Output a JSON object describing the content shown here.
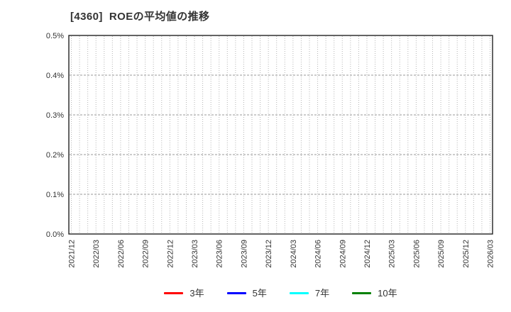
{
  "chart_data": {
    "type": "line",
    "title": "[4360]  ROEの平均値の推移",
    "xlabel": "",
    "ylabel": "",
    "y_unit": "%",
    "ylim": [
      0.0,
      0.5
    ],
    "y_tick_step": 0.1,
    "y_tick_labels": [
      "0.0%",
      "0.1%",
      "0.2%",
      "0.3%",
      "0.4%",
      "0.5%"
    ],
    "x_monthly_count": 52,
    "x_label_every_n_months": 3,
    "x_tick_labels": [
      "2021/12",
      "2022/03",
      "2022/06",
      "2022/09",
      "2022/12",
      "2023/03",
      "2023/06",
      "2023/09",
      "2023/12",
      "2024/03",
      "2024/06",
      "2024/09",
      "2024/12",
      "2025/03",
      "2025/06",
      "2025/09",
      "2025/12",
      "2026/03"
    ],
    "grid": true,
    "legend_position": "bottom",
    "series": [
      {
        "name": "3年",
        "color": "#ff0000",
        "values": []
      },
      {
        "name": "5年",
        "color": "#0000ff",
        "values": []
      },
      {
        "name": "7年",
        "color": "#00ffff",
        "values": []
      },
      {
        "name": "10年",
        "color": "#008000",
        "values": []
      }
    ]
  }
}
